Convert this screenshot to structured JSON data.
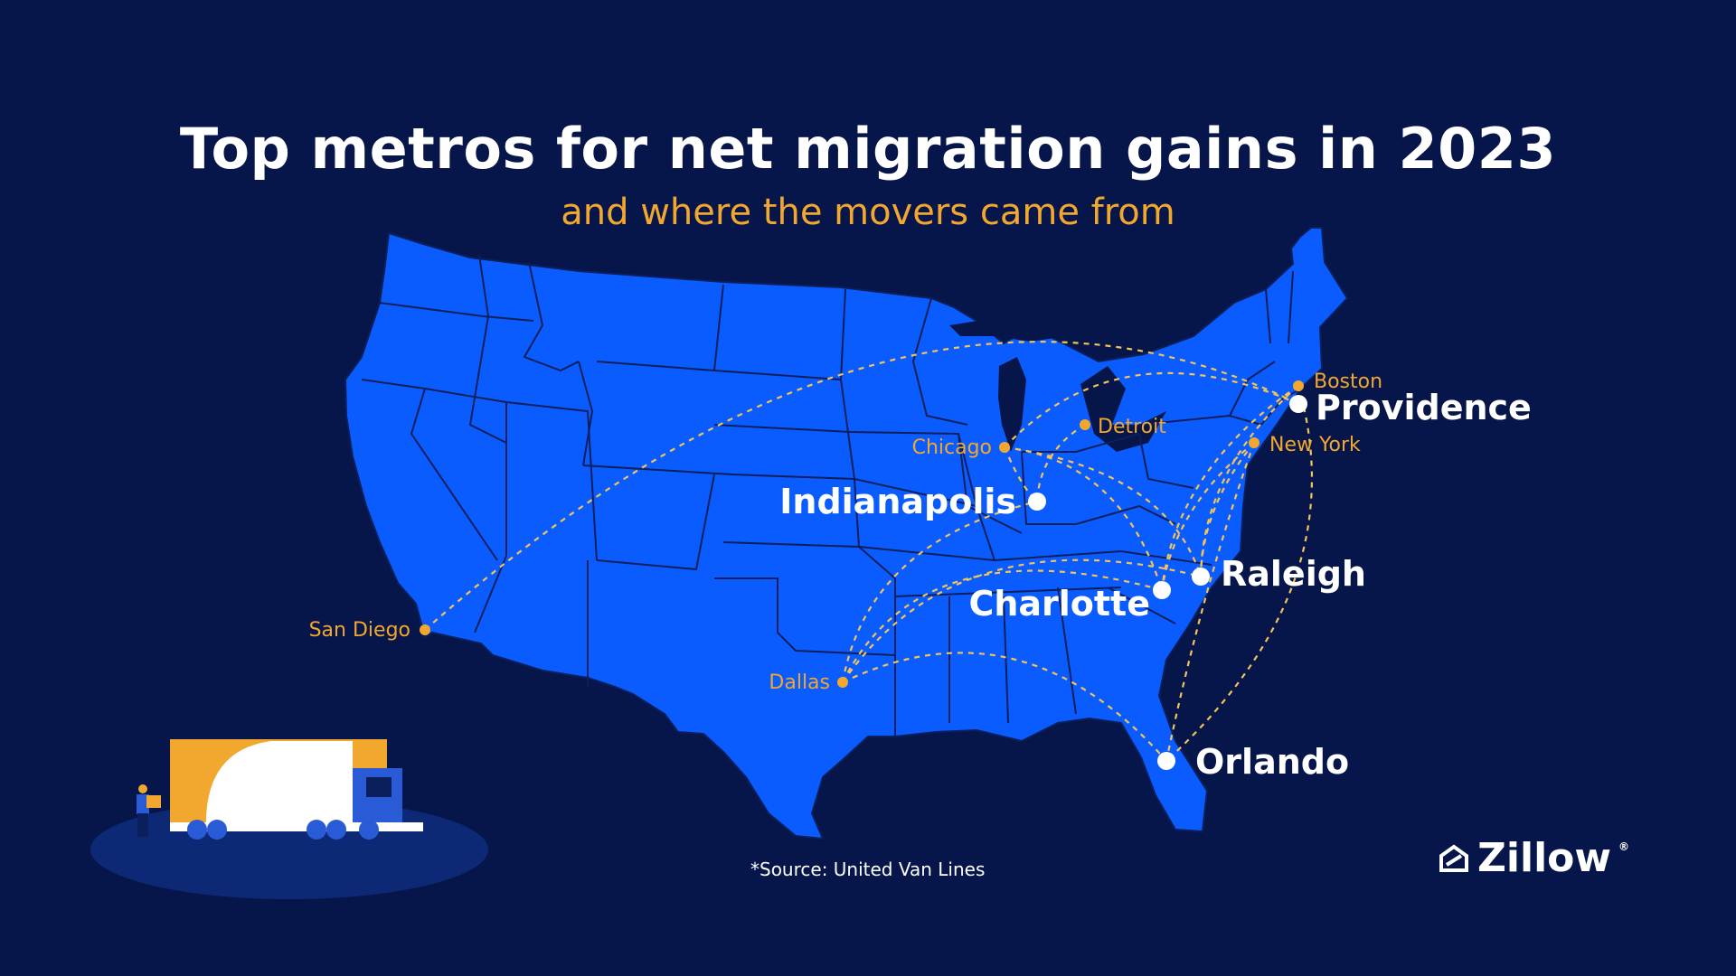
{
  "title": "Top metros for net migration gains in 2023",
  "subtitle": "and where the movers came from",
  "destinations": [
    {
      "name": "Providence"
    },
    {
      "name": "Indianapolis"
    },
    {
      "name": "Raleigh"
    },
    {
      "name": "Charlotte"
    },
    {
      "name": "Orlando"
    }
  ],
  "origins": [
    {
      "name": "Boston"
    },
    {
      "name": "Detroit"
    },
    {
      "name": "Chicago"
    },
    {
      "name": "New York"
    },
    {
      "name": "San Diego"
    },
    {
      "name": "Dallas"
    }
  ],
  "routes": [
    {
      "from": "San Diego",
      "to": "Providence"
    },
    {
      "from": "Chicago",
      "to": "Providence"
    },
    {
      "from": "Chicago",
      "to": "Indianapolis"
    },
    {
      "from": "Detroit",
      "to": "Indianapolis"
    },
    {
      "from": "Chicago",
      "to": "Charlotte"
    },
    {
      "from": "Chicago",
      "to": "Raleigh"
    },
    {
      "from": "Boston",
      "to": "Charlotte"
    },
    {
      "from": "Boston",
      "to": "Raleigh"
    },
    {
      "from": "New York",
      "to": "Charlotte"
    },
    {
      "from": "New York",
      "to": "Raleigh"
    },
    {
      "from": "New York",
      "to": "Orlando"
    },
    {
      "from": "Boston",
      "to": "Orlando"
    },
    {
      "from": "Dallas",
      "to": "Indianapolis"
    },
    {
      "from": "Dallas",
      "to": "Charlotte"
    },
    {
      "from": "Dallas",
      "to": "Raleigh"
    },
    {
      "from": "Dallas",
      "to": "Orlando"
    }
  ],
  "source": "*Source: United Van Lines",
  "brand": "Zillow",
  "colors": {
    "background": "#06164a",
    "land": "#0a5cff",
    "borders": "#0b1f5c",
    "accent": "#f2a72e",
    "text": "#ffffff"
  }
}
